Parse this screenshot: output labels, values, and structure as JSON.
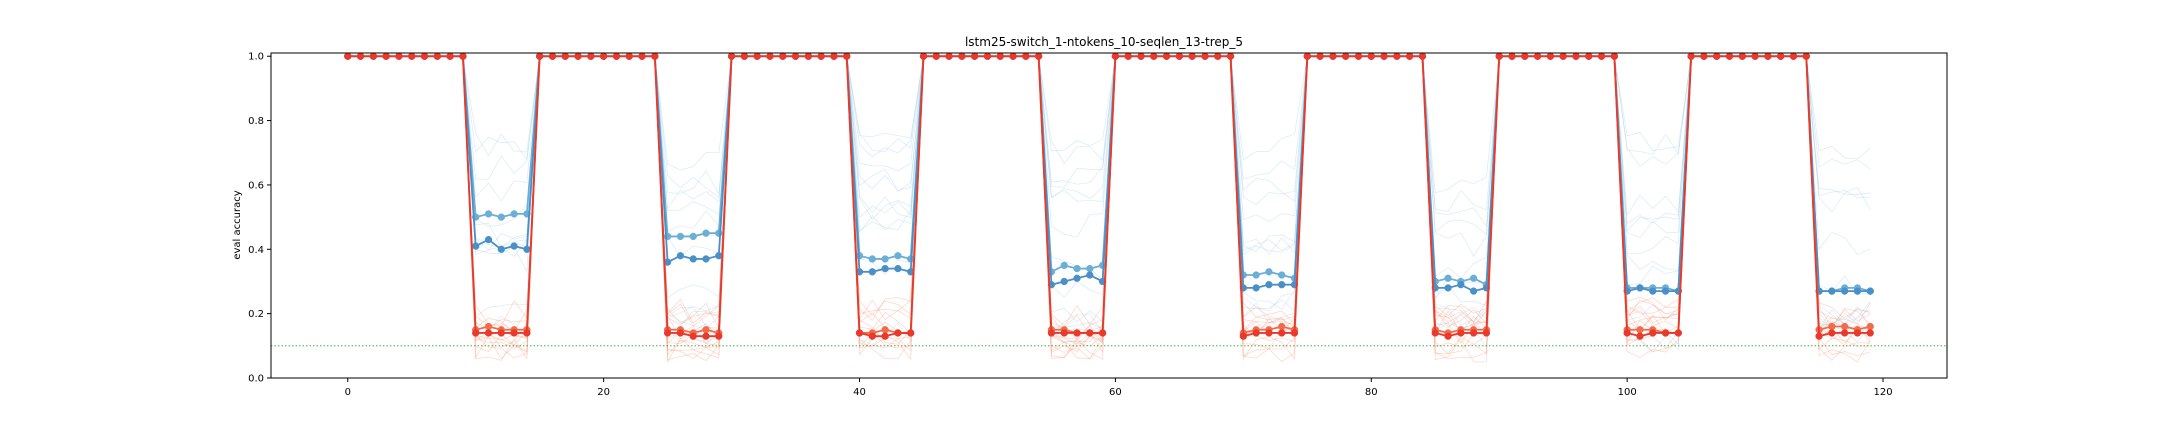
{
  "chart_data": {
    "type": "line",
    "title": "lstm25-switch_1-ntokens_10-seqlen_13-trep_5",
    "xlabel": "",
    "ylabel": "eval accuracy",
    "xlim": [
      -6,
      125
    ],
    "ylim": [
      0.0,
      1.01
    ],
    "xticks": [
      0,
      20,
      40,
      60,
      80,
      100,
      120
    ],
    "yticks": [
      0.0,
      0.2,
      0.4,
      0.6,
      0.8,
      1.0
    ],
    "grid": false,
    "reference_line": {
      "y": 0.1,
      "color": "#2ca02c",
      "style": "dotted"
    },
    "phase_length": 5,
    "high_level": 1.0,
    "n_points": 120,
    "low_phase_starts": [
      10,
      25,
      40,
      55,
      70,
      85,
      100,
      115
    ],
    "series": [
      {
        "color": "#6baed6",
        "values_low": [
          [
            0.5,
            0.51,
            0.5,
            0.51,
            0.51
          ],
          [
            0.44,
            0.44,
            0.44,
            0.45,
            0.45
          ],
          [
            0.38,
            0.37,
            0.37,
            0.38,
            0.37
          ],
          [
            0.33,
            0.35,
            0.34,
            0.34,
            0.35
          ],
          [
            0.32,
            0.32,
            0.33,
            0.32,
            0.31
          ],
          [
            0.3,
            0.31,
            0.3,
            0.31,
            0.29
          ],
          [
            0.28,
            0.28,
            0.28,
            0.28,
            0.27
          ],
          [
            0.27,
            0.27,
            0.28,
            0.28,
            0.27
          ]
        ]
      },
      {
        "color": "#4a90c8",
        "values_low": [
          [
            0.41,
            0.43,
            0.4,
            0.41,
            0.4
          ],
          [
            0.36,
            0.38,
            0.37,
            0.37,
            0.38
          ],
          [
            0.33,
            0.33,
            0.34,
            0.34,
            0.33
          ],
          [
            0.29,
            0.3,
            0.31,
            0.32,
            0.3
          ],
          [
            0.28,
            0.28,
            0.29,
            0.29,
            0.29
          ],
          [
            0.28,
            0.28,
            0.29,
            0.27,
            0.28
          ],
          [
            0.27,
            0.28,
            0.27,
            0.27,
            0.27
          ],
          [
            0.27,
            0.27,
            0.27,
            0.27,
            0.27
          ]
        ]
      },
      {
        "color": "#f26b4a",
        "values_low": [
          [
            0.15,
            0.16,
            0.15,
            0.15,
            0.15
          ],
          [
            0.15,
            0.15,
            0.14,
            0.15,
            0.14
          ],
          [
            0.14,
            0.14,
            0.15,
            0.14,
            0.14
          ],
          [
            0.15,
            0.15,
            0.14,
            0.14,
            0.14
          ],
          [
            0.14,
            0.15,
            0.15,
            0.16,
            0.15
          ],
          [
            0.15,
            0.14,
            0.15,
            0.15,
            0.15
          ],
          [
            0.15,
            0.15,
            0.15,
            0.14,
            0.14
          ],
          [
            0.15,
            0.16,
            0.16,
            0.15,
            0.16
          ]
        ]
      },
      {
        "color": "#e8392b",
        "values_low": [
          [
            0.14,
            0.14,
            0.14,
            0.14,
            0.14
          ],
          [
            0.14,
            0.14,
            0.13,
            0.13,
            0.13
          ],
          [
            0.14,
            0.13,
            0.13,
            0.14,
            0.14
          ],
          [
            0.14,
            0.14,
            0.14,
            0.14,
            0.14
          ],
          [
            0.13,
            0.14,
            0.14,
            0.14,
            0.14
          ],
          [
            0.14,
            0.13,
            0.14,
            0.14,
            0.14
          ],
          [
            0.14,
            0.13,
            0.14,
            0.14,
            0.14
          ],
          [
            0.13,
            0.14,
            0.14,
            0.14,
            0.14
          ]
        ]
      }
    ],
    "faint_series": {
      "count": 26,
      "blue_color": "#9ecae1",
      "red_color": "#fc9272",
      "low_range_blue": [
        0.12,
        0.75
      ],
      "low_range_red": [
        0.08,
        0.22
      ]
    }
  }
}
